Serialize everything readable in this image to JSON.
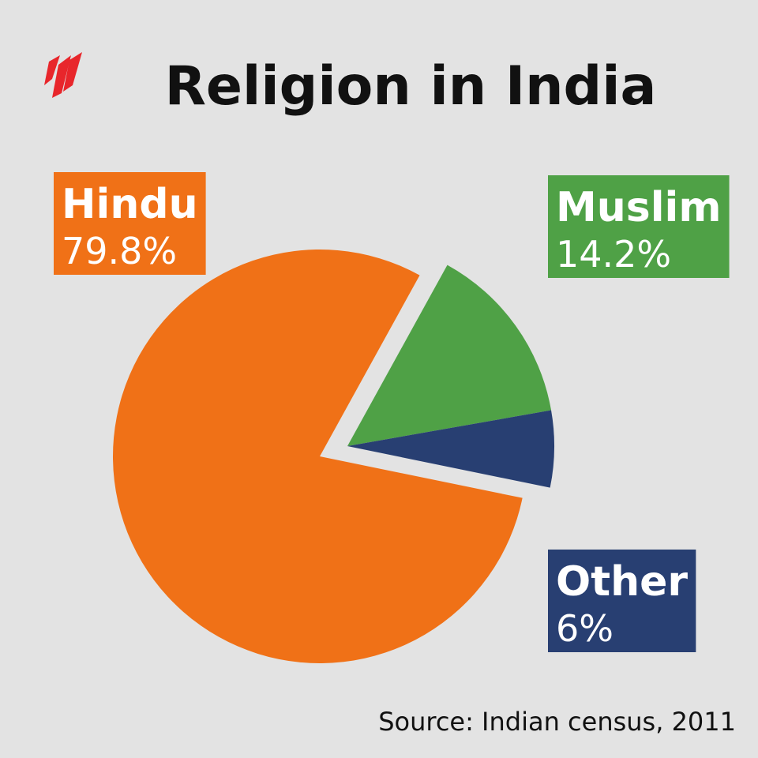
{
  "chart_data": {
    "type": "pie",
    "title": "Religion in India",
    "source": "Source: Indian census, 2011",
    "categories": [
      "Hindu",
      "Muslim",
      "Other"
    ],
    "values": [
      79.8,
      14.2,
      6
    ],
    "value_labels": [
      "79.8%",
      "14.2%",
      "6%"
    ],
    "colors": [
      "#f07117",
      "#4fa146",
      "#283f72"
    ]
  }
}
